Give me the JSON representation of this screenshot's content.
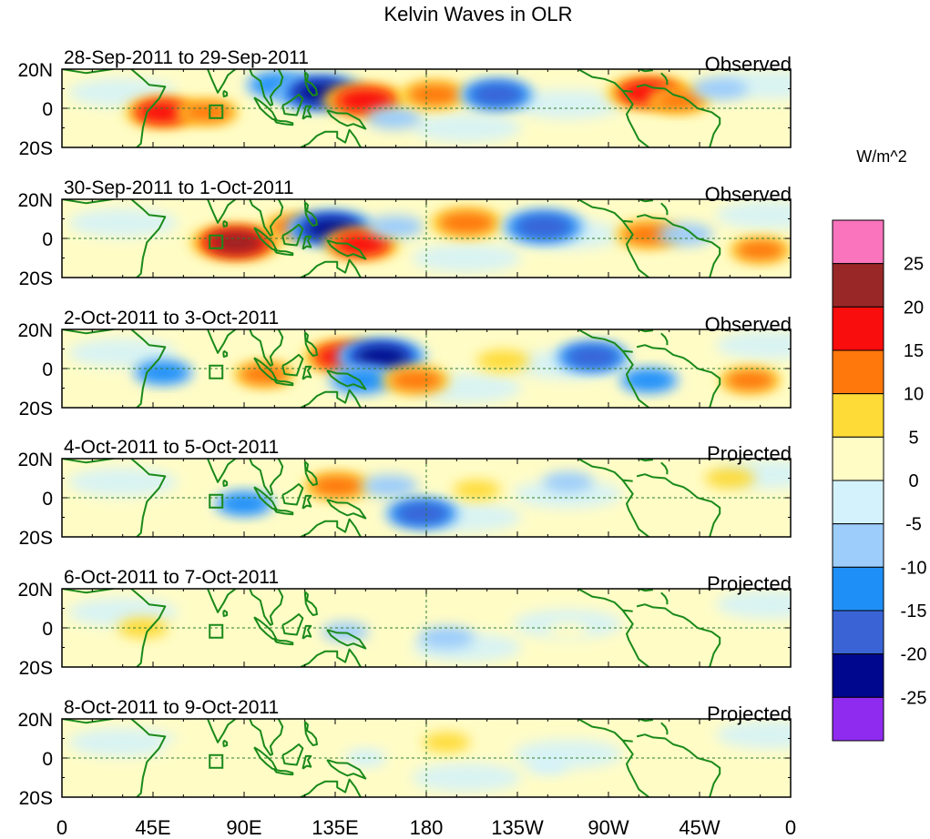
{
  "chart_data": {
    "type": "heatmap",
    "title": "Kelvin Waves in OLR",
    "units_label": "W/m^2",
    "x_ticks": [
      "0",
      "45E",
      "90E",
      "135E",
      "180",
      "135W",
      "90W",
      "45W",
      "0"
    ],
    "y_ticks": [
      "20N",
      "0",
      "20S"
    ],
    "xlim_deg_east": [
      0,
      360
    ],
    "ylim_deg": [
      -20,
      20
    ],
    "colorbar": {
      "tick_labels": [
        "25",
        "20",
        "15",
        "10",
        "5",
        "0",
        "-5",
        "-10",
        "-15",
        "-20",
        "-25"
      ],
      "levels": [
        -25,
        -20,
        -15,
        -10,
        -5,
        0,
        5,
        10,
        15,
        20,
        25
      ],
      "colors": [
        "#8f2bef",
        "#00078f",
        "#3a64d6",
        "#1e8ff7",
        "#9dcdfb",
        "#d3f2fb",
        "#fffcc6",
        "#fedb37",
        "#fe780c",
        "#f90d0d",
        "#9a2727",
        "#f973bd"
      ]
    },
    "panels": [
      {
        "period": "28-Sep-2011 to 29-Sep-2011",
        "kind": "Observed",
        "anomalies": [
          {
            "lon": 50,
            "lat": -2,
            "value": 15
          },
          {
            "lon": 72,
            "lat": -2,
            "value": 10
          },
          {
            "lon": 107,
            "lat": 12,
            "value": -12
          },
          {
            "lon": 128,
            "lat": 8,
            "value": -20
          },
          {
            "lon": 150,
            "lat": 4,
            "value": 18
          },
          {
            "lon": 164,
            "lat": -5,
            "value": -8
          },
          {
            "lon": 184,
            "lat": 7,
            "value": 12
          },
          {
            "lon": 215,
            "lat": 7,
            "value": -15
          },
          {
            "lon": 290,
            "lat": 8,
            "value": 18
          },
          {
            "lon": 305,
            "lat": 4,
            "value": 10
          },
          {
            "lon": 325,
            "lat": 10,
            "value": -8
          }
        ]
      },
      {
        "period": "30-Sep-2011 to 1-Oct-2011",
        "kind": "Observed",
        "anomalies": [
          {
            "lon": 86,
            "lat": -2,
            "value": 20
          },
          {
            "lon": 115,
            "lat": 6,
            "value": 10
          },
          {
            "lon": 133,
            "lat": 5,
            "value": -20
          },
          {
            "lon": 148,
            "lat": -3,
            "value": 15
          },
          {
            "lon": 165,
            "lat": 6,
            "value": -8
          },
          {
            "lon": 200,
            "lat": 8,
            "value": 14
          },
          {
            "lon": 238,
            "lat": 6,
            "value": -18
          },
          {
            "lon": 290,
            "lat": 2,
            "value": 12
          },
          {
            "lon": 308,
            "lat": 2,
            "value": -8
          },
          {
            "lon": 345,
            "lat": -6,
            "value": 10
          }
        ]
      },
      {
        "period": "2-Oct-2011 to 3-Oct-2011",
        "kind": "Observed",
        "anomalies": [
          {
            "lon": 50,
            "lat": -2,
            "value": -10
          },
          {
            "lon": 100,
            "lat": -3,
            "value": 10
          },
          {
            "lon": 140,
            "lat": 6,
            "value": 18
          },
          {
            "lon": 158,
            "lat": 6,
            "value": -20
          },
          {
            "lon": 148,
            "lat": -6,
            "value": -12
          },
          {
            "lon": 175,
            "lat": -6,
            "value": 12
          },
          {
            "lon": 218,
            "lat": 4,
            "value": 7
          },
          {
            "lon": 262,
            "lat": 6,
            "value": -15
          },
          {
            "lon": 290,
            "lat": -6,
            "value": -10
          },
          {
            "lon": 340,
            "lat": -6,
            "value": 10
          }
        ]
      },
      {
        "period": "4-Oct-2011 to 5-Oct-2011",
        "kind": "Projected",
        "anomalies": [
          {
            "lon": 90,
            "lat": -3,
            "value": -10
          },
          {
            "lon": 136,
            "lat": 6,
            "value": 12
          },
          {
            "lon": 162,
            "lat": 6,
            "value": -8
          },
          {
            "lon": 178,
            "lat": -8,
            "value": -15
          },
          {
            "lon": 205,
            "lat": 4,
            "value": 5
          },
          {
            "lon": 250,
            "lat": 8,
            "value": -6
          },
          {
            "lon": 330,
            "lat": 10,
            "value": 6
          }
        ]
      },
      {
        "period": "6-Oct-2011 to 7-Oct-2011",
        "kind": "Projected",
        "anomalies": [
          {
            "lon": 40,
            "lat": 0,
            "value": 6
          },
          {
            "lon": 140,
            "lat": -2,
            "value": -5
          },
          {
            "lon": 190,
            "lat": -5,
            "value": -8
          },
          {
            "lon": 250,
            "lat": -2,
            "value": 3
          }
        ]
      },
      {
        "period": "8-Oct-2011 to 9-Oct-2011",
        "kind": "Projected",
        "anomalies": [
          {
            "lon": 60,
            "lat": 4,
            "value": 4
          },
          {
            "lon": 150,
            "lat": 0,
            "value": -3
          },
          {
            "lon": 190,
            "lat": 8,
            "value": 5
          },
          {
            "lon": 240,
            "lat": -4,
            "value": -3
          }
        ]
      }
    ]
  }
}
